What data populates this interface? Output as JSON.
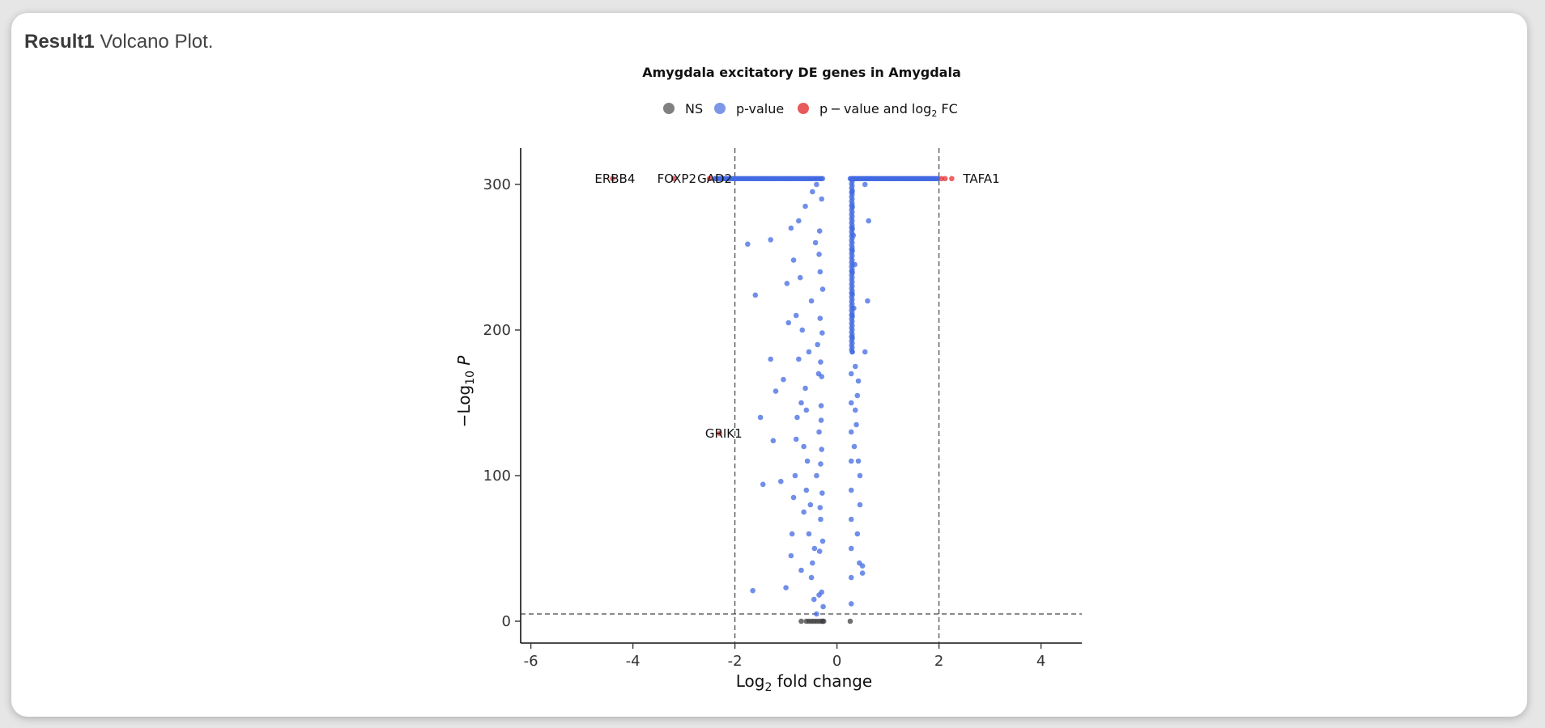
{
  "caption": {
    "bold": "Result1",
    "text": " Volcano Plot."
  },
  "chart_data": {
    "type": "scatter",
    "title": "Amygdala excitatory DE genes in Amygdala",
    "xlabel": "Log2 fold change",
    "ylabel": "−Log10 P",
    "xlim": [
      -6.2,
      4.8
    ],
    "ylim": [
      -15,
      325
    ],
    "xticks": [
      -6,
      -4,
      -2,
      0,
      2,
      4
    ],
    "yticks": [
      0,
      100,
      200,
      300
    ],
    "grid": false,
    "fc_cutoff": [
      -2,
      2
    ],
    "p_cutoff_neglog10": 5,
    "legend": {
      "position": "top",
      "items": [
        {
          "key": "ns",
          "label": "NS",
          "color": "#808080"
        },
        {
          "key": "p",
          "label": "p-value",
          "color": "#7b97e6"
        },
        {
          "key": "pfc",
          "label": "p − value and log",
          "sub": "2",
          "suffix": " FC",
          "color": "#e85a5a"
        }
      ]
    },
    "colors": {
      "ns": "#404040",
      "p": "#4169e1",
      "pfc": "#e8302f"
    },
    "labeled_points": [
      {
        "gene": "ERBB4",
        "x": -4.4,
        "y": 304
      },
      {
        "gene": "FOXP2",
        "x": -3.2,
        "y": 304
      },
      {
        "gene": "GAD2",
        "x": -2.5,
        "y": 304
      },
      {
        "gene": "GRIK1",
        "x": -2.3,
        "y": 129
      },
      {
        "gene": "TAFA1",
        "x": 2.25,
        "y": 304
      }
    ],
    "series": [
      {
        "name": "NS",
        "points": [
          [
            -0.7,
            0
          ],
          [
            -0.6,
            0
          ],
          [
            -0.55,
            0
          ],
          [
            -0.5,
            0
          ],
          [
            -0.45,
            0
          ],
          [
            -0.4,
            0
          ],
          [
            -0.35,
            0
          ],
          [
            -0.3,
            0
          ],
          [
            -0.28,
            0
          ],
          [
            -0.26,
            0
          ],
          [
            0.26,
            0
          ]
        ]
      },
      {
        "name": "p-value",
        "points": [
          [
            -1.75,
            259
          ],
          [
            -1.6,
            224
          ],
          [
            -1.3,
            262
          ],
          [
            -1.3,
            180
          ],
          [
            -1.25,
            124
          ],
          [
            -1.5,
            140
          ],
          [
            -1.65,
            21
          ],
          [
            -1.45,
            94
          ],
          [
            -1.1,
            96
          ],
          [
            -1.05,
            166
          ],
          [
            -0.98,
            232
          ],
          [
            -1.0,
            23
          ],
          [
            -1.2,
            158
          ],
          [
            -0.9,
            270
          ],
          [
            -0.85,
            248
          ],
          [
            -0.8,
            210
          ],
          [
            -0.75,
            180
          ],
          [
            -0.7,
            150
          ],
          [
            -0.65,
            120
          ],
          [
            -0.6,
            90
          ],
          [
            -0.55,
            60
          ],
          [
            -0.5,
            30
          ],
          [
            -0.45,
            15
          ],
          [
            -0.4,
            5
          ],
          [
            -0.88,
            60
          ],
          [
            -0.82,
            100
          ],
          [
            -0.78,
            140
          ],
          [
            -0.72,
            236
          ],
          [
            -0.68,
            200
          ],
          [
            -0.62,
            160
          ],
          [
            -0.58,
            110
          ],
          [
            -0.52,
            80
          ],
          [
            -0.48,
            40
          ],
          [
            -0.42,
            260
          ],
          [
            -0.38,
            190
          ],
          [
            -0.35,
            130
          ],
          [
            -0.32,
            70
          ],
          [
            -0.3,
            20
          ],
          [
            -0.3,
            290
          ],
          [
            -0.33,
            240
          ],
          [
            -0.36,
            170
          ],
          [
            -0.4,
            100
          ],
          [
            -0.44,
            50
          ],
          [
            -0.5,
            220
          ],
          [
            -0.55,
            185
          ],
          [
            -0.6,
            145
          ],
          [
            -0.65,
            75
          ],
          [
            -0.7,
            35
          ],
          [
            -0.75,
            275
          ],
          [
            -0.8,
            125
          ],
          [
            -0.85,
            85
          ],
          [
            -0.9,
            45
          ],
          [
            -0.95,
            205
          ],
          [
            -0.62,
            285
          ],
          [
            -0.48,
            295
          ],
          [
            -0.4,
            300
          ],
          [
            -0.35,
            252
          ],
          [
            -0.28,
            228
          ],
          [
            -0.29,
            198
          ],
          [
            -0.3,
            168
          ],
          [
            -0.31,
            138
          ],
          [
            -0.32,
            108
          ],
          [
            -0.33,
            78
          ],
          [
            -0.34,
            48
          ],
          [
            -0.35,
            18
          ],
          [
            -0.27,
            10
          ],
          [
            -0.28,
            55
          ],
          [
            -0.29,
            88
          ],
          [
            -0.3,
            118
          ],
          [
            -0.31,
            148
          ],
          [
            -0.32,
            178
          ],
          [
            -0.33,
            208
          ],
          [
            -0.34,
            268
          ],
          [
            0.3,
            295
          ],
          [
            0.3,
            285
          ],
          [
            0.3,
            270
          ],
          [
            0.3,
            255
          ],
          [
            0.3,
            240
          ],
          [
            0.3,
            225
          ],
          [
            0.3,
            210
          ],
          [
            0.3,
            195
          ],
          [
            0.3,
            185
          ],
          [
            0.28,
            170
          ],
          [
            0.28,
            150
          ],
          [
            0.28,
            130
          ],
          [
            0.28,
            110
          ],
          [
            0.28,
            90
          ],
          [
            0.28,
            70
          ],
          [
            0.28,
            50
          ],
          [
            0.28,
            30
          ],
          [
            0.28,
            12
          ],
          [
            0.32,
            265
          ],
          [
            0.35,
            245
          ],
          [
            0.33,
            215
          ],
          [
            0.36,
            175
          ],
          [
            0.4,
            155
          ],
          [
            0.38,
            135
          ],
          [
            0.42,
            110
          ],
          [
            0.45,
            80
          ],
          [
            0.4,
            60
          ],
          [
            0.44,
            40
          ],
          [
            0.5,
            33
          ],
          [
            0.55,
            185
          ],
          [
            0.6,
            220
          ],
          [
            0.62,
            275
          ],
          [
            0.55,
            300
          ],
          [
            0.5,
            38
          ],
          [
            0.45,
            100
          ],
          [
            0.36,
            145
          ],
          [
            0.34,
            120
          ],
          [
            0.42,
            165
          ]
        ]
      },
      {
        "name": "p-value and log2 FC",
        "points": [
          [
            -4.4,
            304
          ],
          [
            -3.2,
            304
          ],
          [
            -2.5,
            304
          ],
          [
            -2.3,
            129
          ],
          [
            2.05,
            304
          ],
          [
            2.12,
            304
          ],
          [
            2.25,
            304
          ]
        ]
      }
    ]
  }
}
